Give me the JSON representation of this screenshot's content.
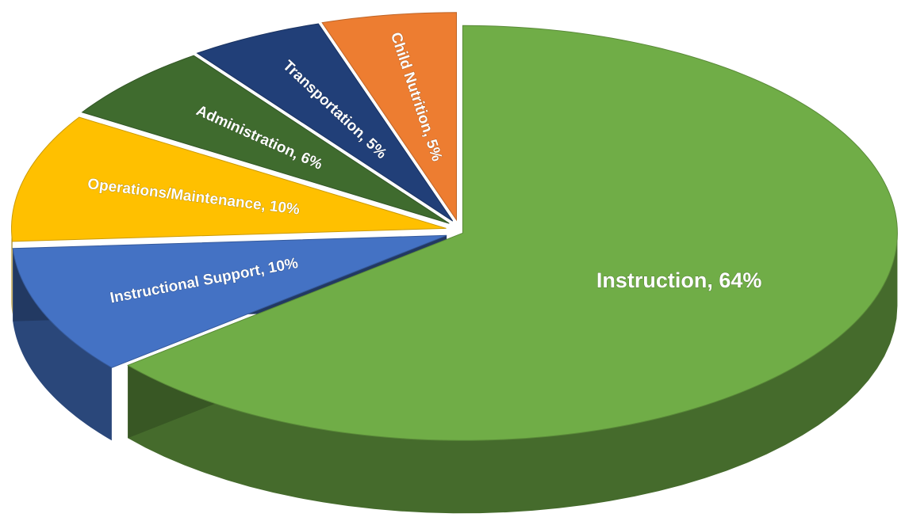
{
  "chart_data": {
    "type": "pie3d",
    "values": [
      64,
      10,
      10,
      6,
      5,
      5
    ],
    "value_labels": [
      "Instruction, 64%",
      "Instructional Support, 10%",
      "Operations/Maintenance, 10%",
      "Administration, 6%",
      "Transportation, 5%",
      "Child Nutrition, 5%"
    ],
    "colors": [
      "#70ad47",
      "#4472c4",
      "#ffc000",
      "#3f6b2e",
      "#213f78",
      "#ed7d31"
    ]
  }
}
